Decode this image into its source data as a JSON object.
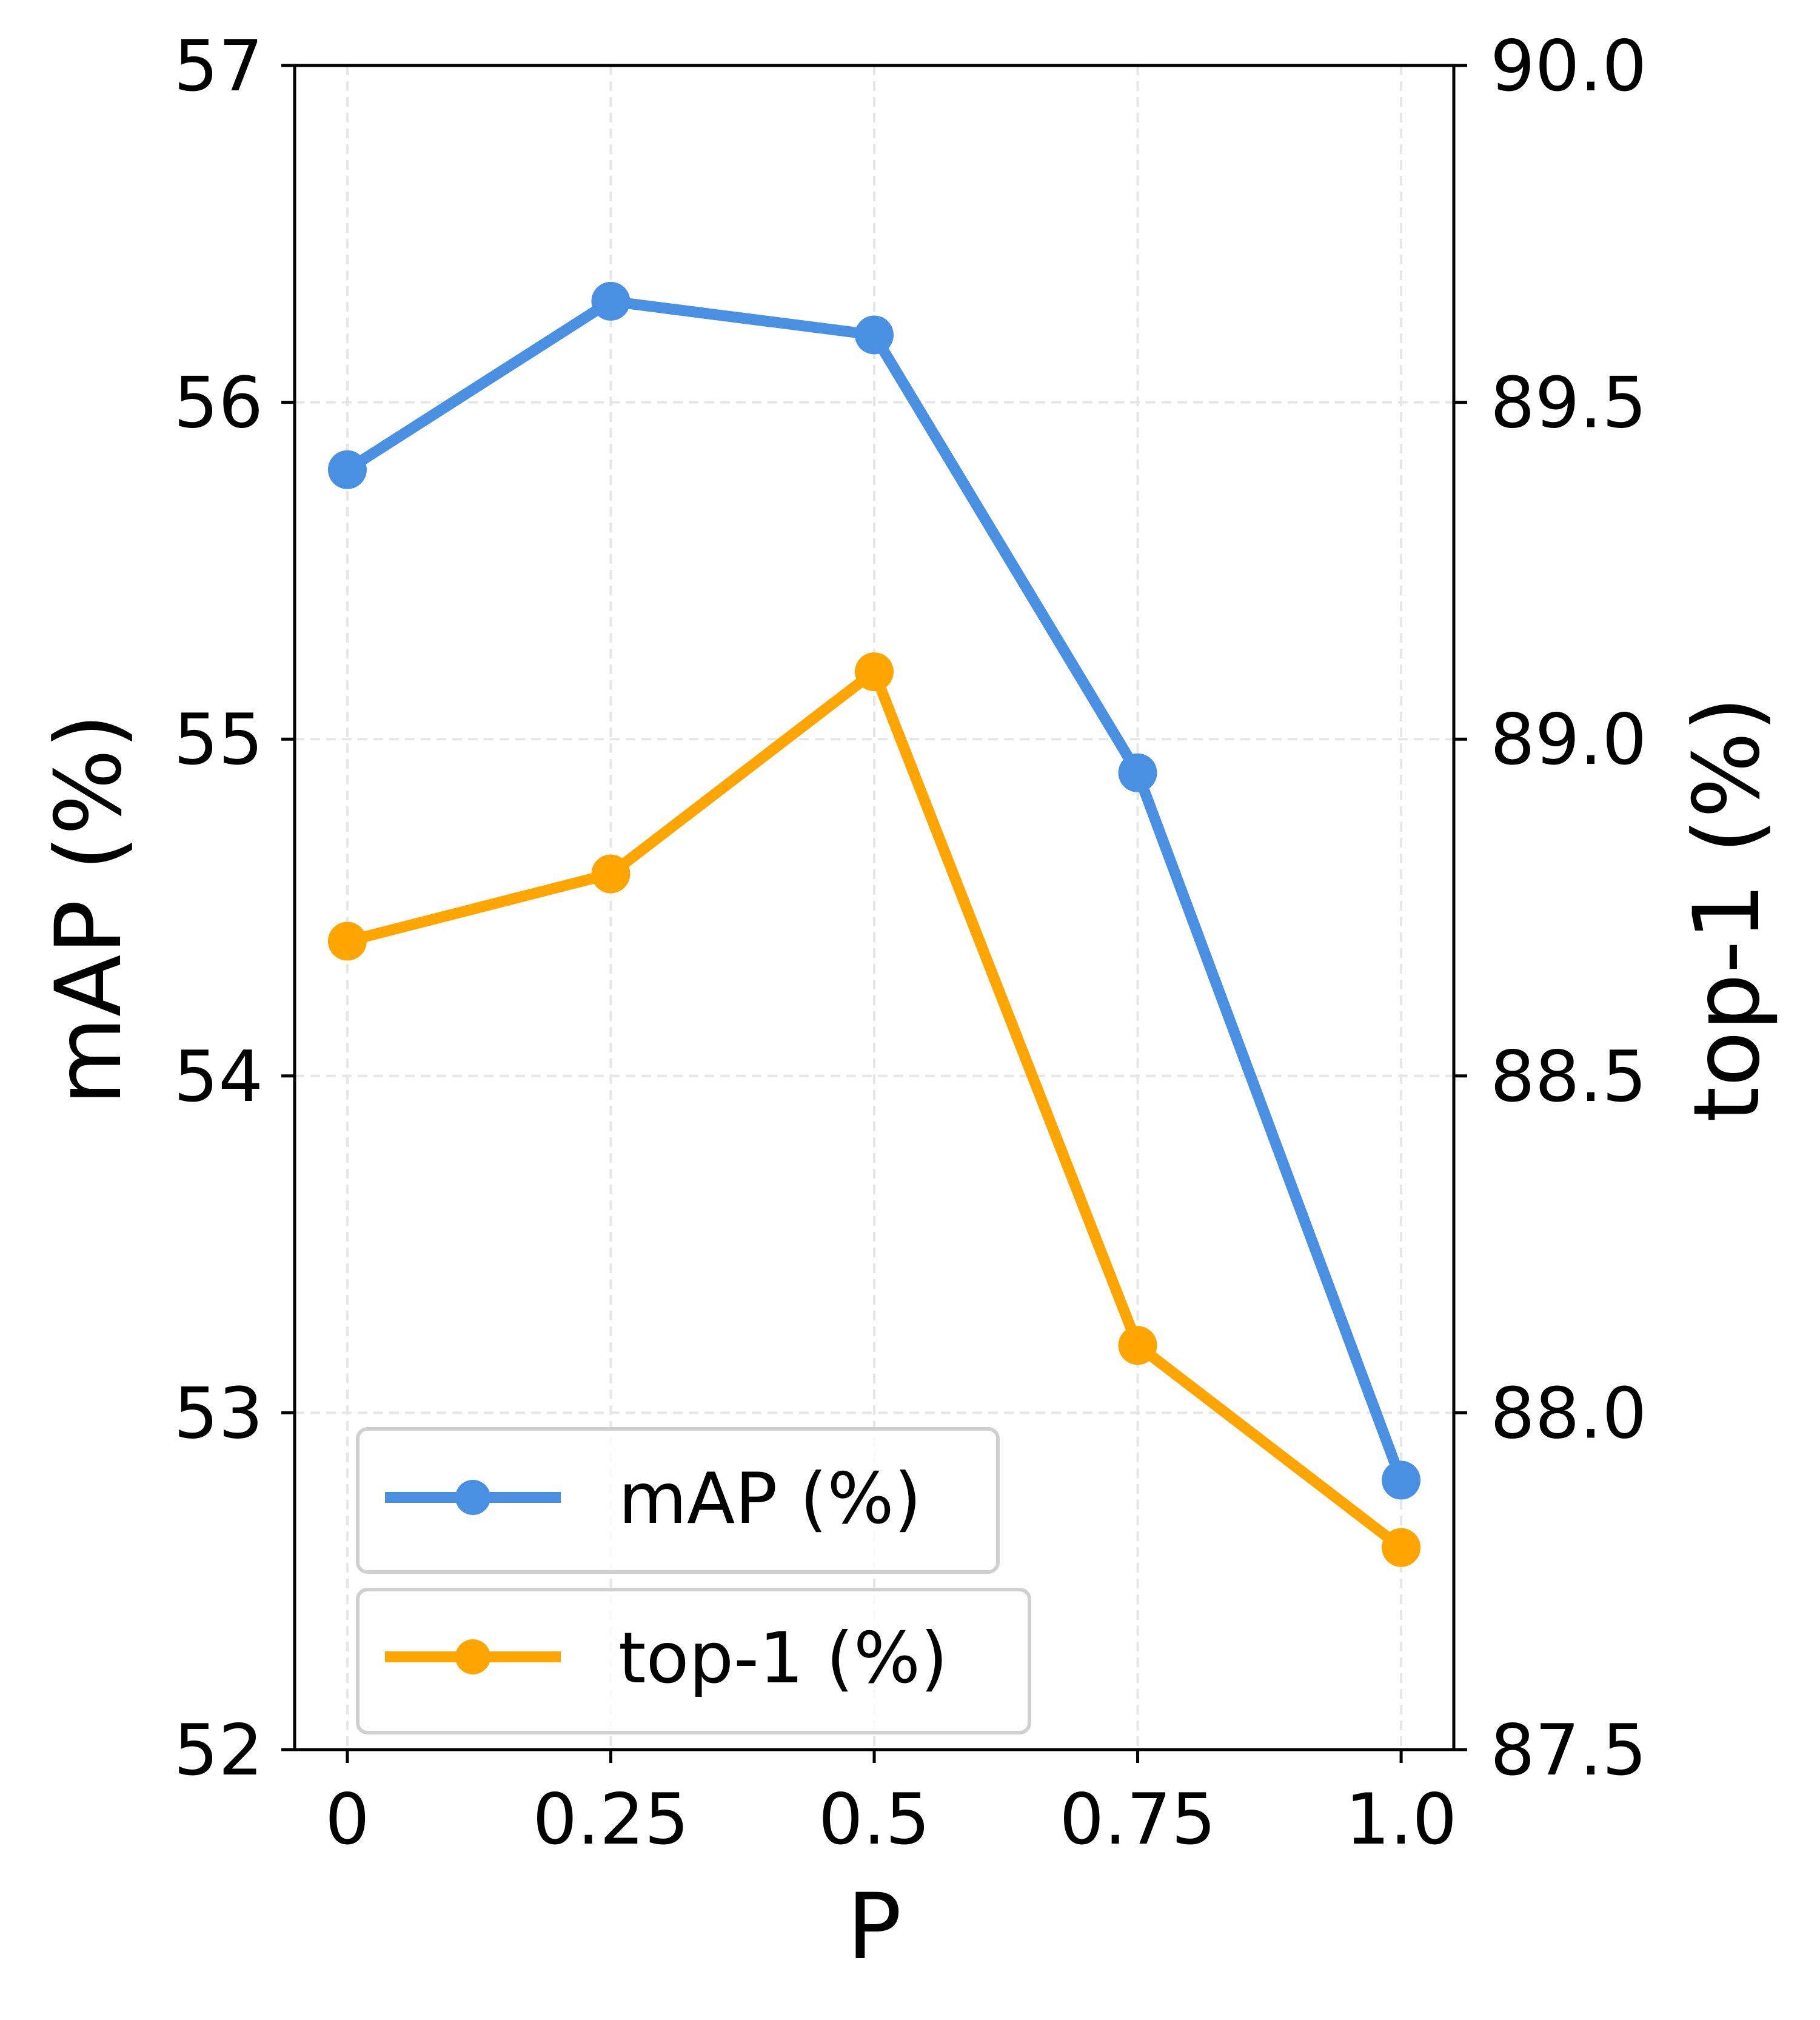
{
  "chart_data": {
    "type": "line",
    "xlabel": "P",
    "ylabel_left": "mAP (%)",
    "ylabel_right": "top-1 (%)",
    "x": [
      0,
      0.25,
      0.5,
      0.75,
      1.0
    ],
    "x_tick_labels": [
      "0",
      "0.25",
      "0.5",
      "0.75",
      "1.0"
    ],
    "xlim": [
      -0.05,
      1.05
    ],
    "ylim_left": [
      52,
      57
    ],
    "ylim_right": [
      87.5,
      90.0
    ],
    "y_left_tick_labels": [
      "52",
      "53",
      "54",
      "55",
      "56",
      "57"
    ],
    "y_right_tick_labels": [
      "87.5",
      "88.0",
      "88.5",
      "89.0",
      "89.5",
      "90.0"
    ],
    "grid": true,
    "legend_placement": "bottom-left",
    "series": [
      {
        "name": "mAP (%)",
        "axis": "left",
        "color": "#4A90E2",
        "values": [
          55.8,
          56.3,
          56.2,
          54.9,
          52.8
        ]
      },
      {
        "name": "top-1 (%)",
        "axis": "right",
        "color": "#FFA500",
        "values": [
          88.7,
          88.8,
          89.1,
          88.1,
          87.8
        ]
      }
    ]
  }
}
